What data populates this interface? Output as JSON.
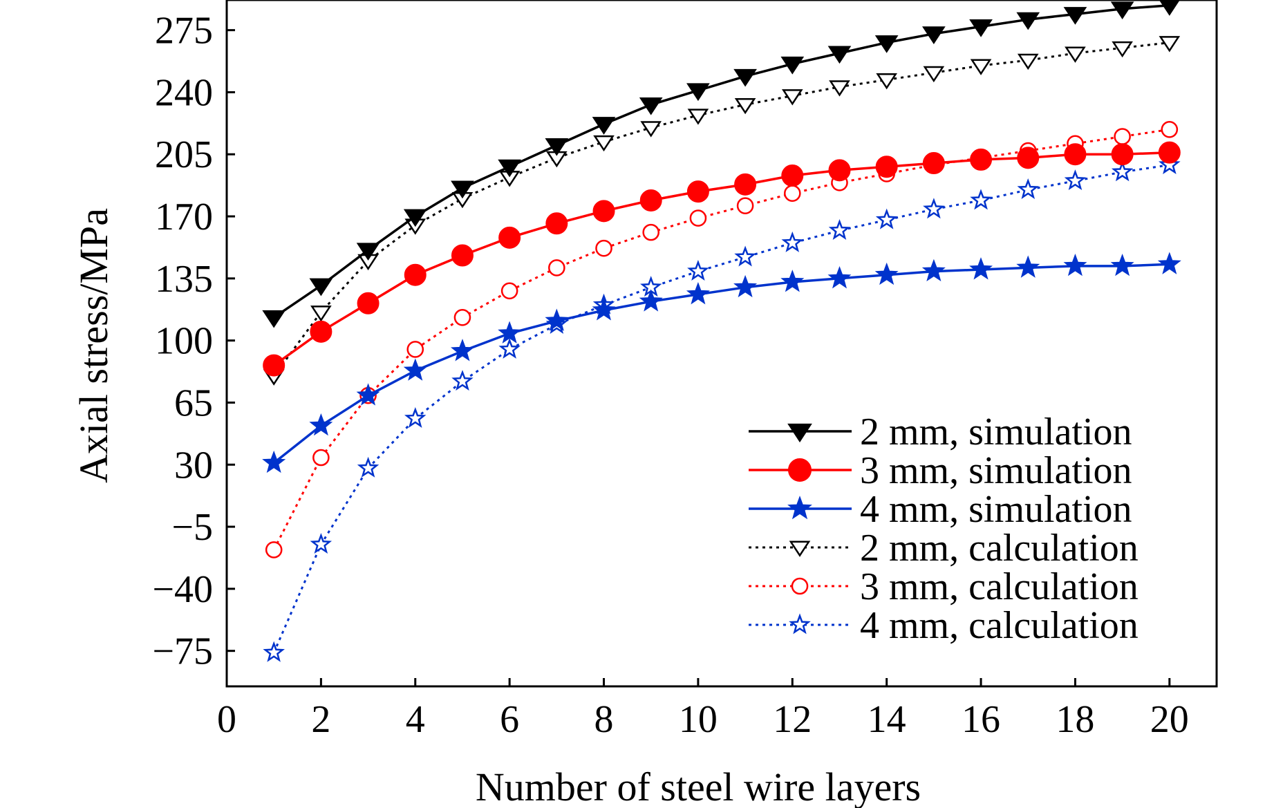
{
  "chart_data": {
    "type": "line",
    "xlabel": "Number of steel wire layers",
    "ylabel": "Axial stress/MPa",
    "xlim": [
      0,
      21
    ],
    "ylim": [
      -95,
      292
    ],
    "x_ticks": [
      0,
      2,
      4,
      6,
      8,
      10,
      12,
      14,
      16,
      18,
      20
    ],
    "x_tick_labels": [
      "0",
      "2",
      "4",
      "6",
      "8",
      "10",
      "12",
      "14",
      "16",
      "18",
      "20"
    ],
    "y_ticks": [
      -75,
      -40,
      -5,
      30,
      65,
      100,
      135,
      170,
      205,
      240,
      275
    ],
    "y_tick_labels": [
      "−75",
      "−40",
      "−5",
      "30",
      "65",
      "100",
      "135",
      "170",
      "205",
      "240",
      "275"
    ],
    "legend_position": "bottom-right",
    "x": [
      1,
      2,
      3,
      4,
      5,
      6,
      7,
      8,
      9,
      10,
      11,
      12,
      13,
      14,
      15,
      16,
      17,
      18,
      19,
      20
    ],
    "series": [
      {
        "name": "2 mm, simulation",
        "color": "#000000",
        "line": "solid",
        "marker": "triangle-down",
        "filled": true,
        "values": [
          113,
          131,
          151,
          170,
          186,
          198,
          210,
          222,
          233,
          241,
          249,
          256,
          262,
          268,
          273,
          277,
          281,
          284,
          287,
          289
        ]
      },
      {
        "name": "3 mm, simulation",
        "color": "#ff0000",
        "line": "solid",
        "marker": "circle",
        "filled": true,
        "values": [
          86,
          105,
          121,
          137,
          148,
          158,
          166,
          173,
          179,
          184,
          188,
          193,
          196,
          198,
          200,
          202,
          203,
          205,
          205,
          206
        ]
      },
      {
        "name": "4 mm, simulation",
        "color": "#0033cc",
        "line": "solid",
        "marker": "star",
        "filled": true,
        "values": [
          31,
          52,
          69,
          83,
          94,
          104,
          111,
          117,
          122,
          126,
          130,
          133,
          135,
          137,
          139,
          140,
          141,
          142,
          142,
          143
        ]
      },
      {
        "name": "2 mm, calculation",
        "color": "#000000",
        "line": "dotted",
        "marker": "triangle-down",
        "filled": false,
        "values": [
          80,
          116,
          145,
          165,
          180,
          192,
          203,
          212,
          220,
          227,
          233,
          238,
          243,
          247,
          251,
          255,
          258,
          262,
          265,
          268
        ]
      },
      {
        "name": "3 mm, calculation",
        "color": "#ff0000",
        "line": "dotted",
        "marker": "circle",
        "filled": false,
        "values": [
          -18,
          34,
          69,
          95,
          113,
          128,
          141,
          152,
          161,
          169,
          176,
          183,
          189,
          194,
          199,
          203,
          207,
          211,
          215,
          219
        ]
      },
      {
        "name": "4 mm, calculation",
        "color": "#0033cc",
        "line": "dotted",
        "marker": "star",
        "filled": false,
        "values": [
          -76,
          -15,
          28,
          56,
          77,
          95,
          109,
          120,
          130,
          139,
          147,
          155,
          162,
          168,
          174,
          179,
          185,
          190,
          195,
          199
        ]
      }
    ]
  }
}
